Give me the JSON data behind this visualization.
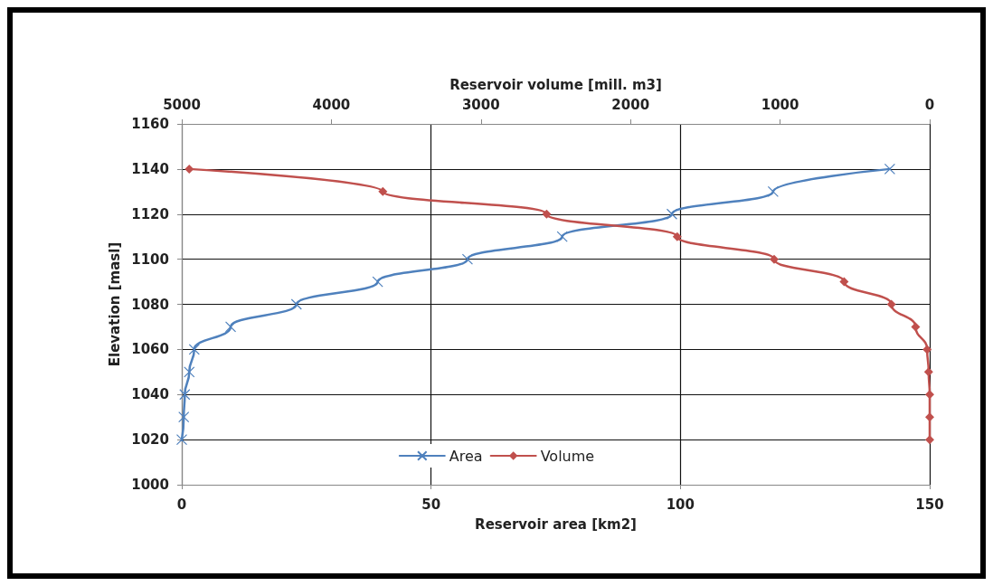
{
  "chart_data": {
    "type": "line",
    "xlabel": "Reservoir area [km2]",
    "x2label": "Reservoir volume [mill. m3]",
    "ylabel": "Elevation [masl]",
    "xlim": [
      0,
      150
    ],
    "xticks": [
      0,
      50,
      100,
      150
    ],
    "x2lim": [
      5000,
      0
    ],
    "x2ticks": [
      5000,
      4000,
      3000,
      2000,
      1000,
      0
    ],
    "ylim": [
      1000,
      1160
    ],
    "yticks": [
      1000,
      1020,
      1040,
      1060,
      1080,
      1100,
      1120,
      1140,
      1160
    ],
    "grid": true,
    "legend": "bottom",
    "line_style": "solid",
    "series": [
      {
        "name": "Area",
        "color": "#4f81bd",
        "marker": "cross",
        "x": [
          0,
          0.4,
          0.6,
          1.5,
          2.5,
          9.8,
          23,
          39.3,
          57.3,
          76.3,
          98.3,
          118.6,
          142
        ],
        "values": [
          1020,
          1030,
          1040,
          1050,
          1060,
          1070,
          1080,
          1090,
          1100,
          1110,
          1120,
          1130,
          1140
        ]
      },
      {
        "name": "Volume",
        "color": "#c0504d",
        "marker": "diamond",
        "axis": "x2",
        "x": [
          0,
          0,
          0,
          7,
          17,
          94,
          256,
          572,
          1040,
          1688,
          2561,
          3656,
          4950
        ],
        "values": [
          1020,
          1030,
          1040,
          1050,
          1060,
          1070,
          1080,
          1090,
          1100,
          1110,
          1120,
          1130,
          1140
        ]
      }
    ]
  }
}
